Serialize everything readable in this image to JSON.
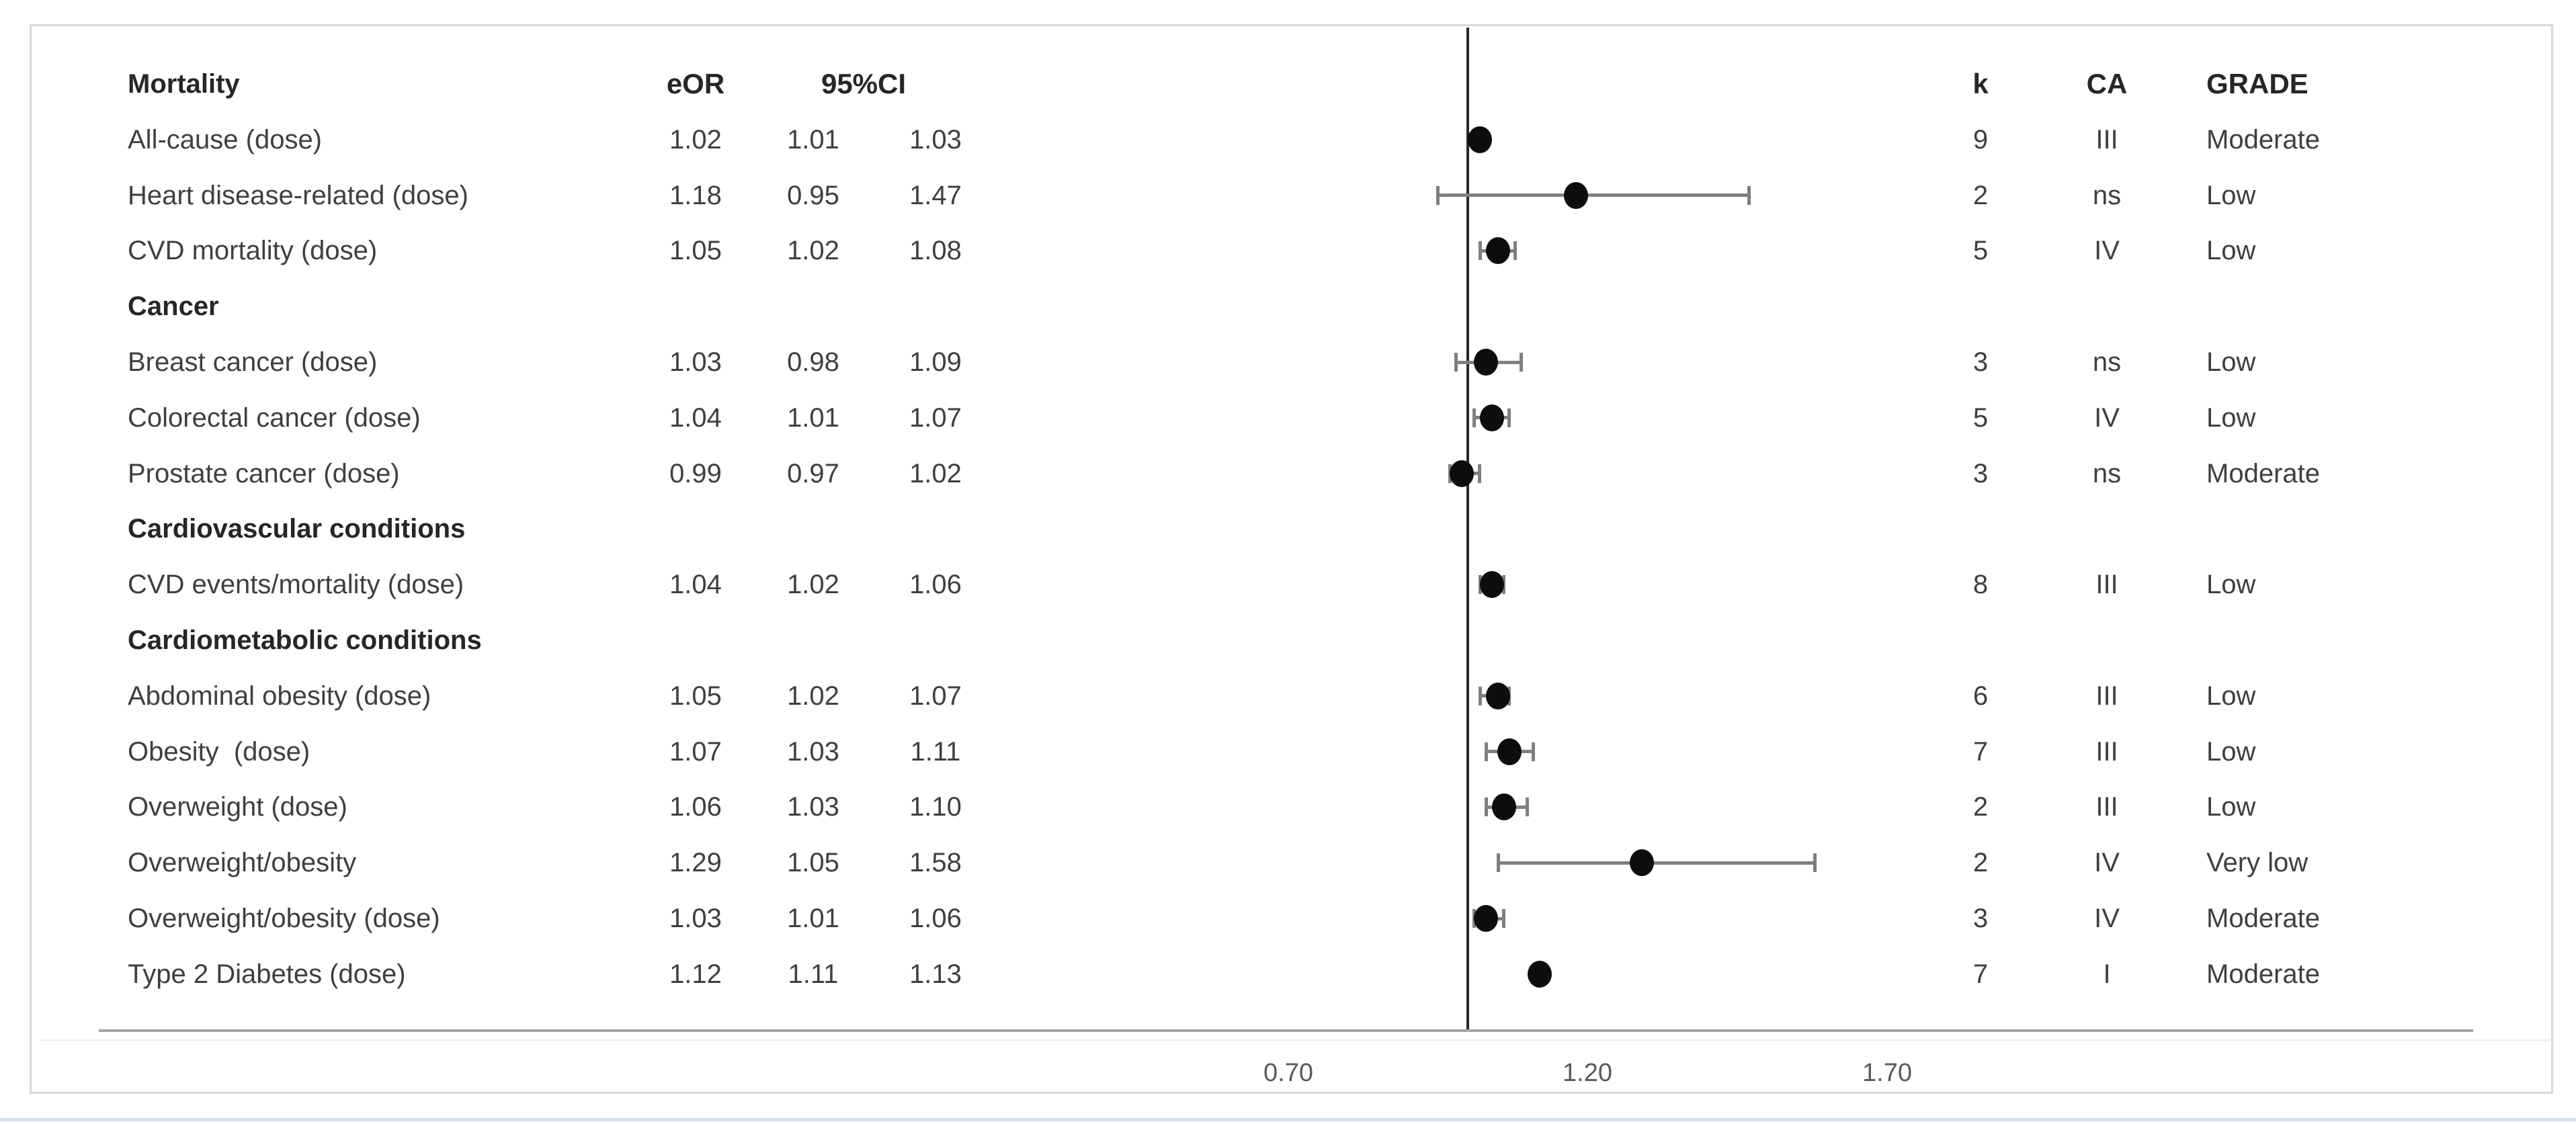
{
  "columns": {
    "eor": "eOR",
    "ci": "95%CI",
    "k": "k",
    "ca": "CA",
    "grade": "GRADE"
  },
  "axis": {
    "tick_labels": [
      "0.70",
      "1.20",
      "1.70"
    ],
    "tick_values": [
      0.7,
      1.2,
      1.7
    ],
    "reference_value": 1.0
  },
  "rows": [
    {
      "type": "section",
      "label": "Mortality"
    },
    {
      "type": "data",
      "label": "All-cause (dose)",
      "eor": "1.02",
      "lo": "1.01",
      "hi": "1.03",
      "k": "9",
      "ca": "III",
      "grade": "Moderate"
    },
    {
      "type": "data",
      "label": "Heart disease-related (dose)",
      "eor": "1.18",
      "lo": "0.95",
      "hi": "1.47",
      "k": "2",
      "ca": "ns",
      "grade": "Low"
    },
    {
      "type": "data",
      "label": "CVD mortality (dose)",
      "eor": "1.05",
      "lo": "1.02",
      "hi": "1.08",
      "k": "5",
      "ca": "IV",
      "grade": "Low"
    },
    {
      "type": "section",
      "label": "Cancer"
    },
    {
      "type": "data",
      "label": "Breast cancer (dose)",
      "eor": "1.03",
      "lo": "0.98",
      "hi": "1.09",
      "k": "3",
      "ca": "ns",
      "grade": "Low"
    },
    {
      "type": "data",
      "label": "Colorectal cancer (dose)",
      "eor": "1.04",
      "lo": "1.01",
      "hi": "1.07",
      "k": "5",
      "ca": "IV",
      "grade": "Low"
    },
    {
      "type": "data",
      "label": "Prostate cancer (dose)",
      "eor": "0.99",
      "lo": "0.97",
      "hi": "1.02",
      "k": "3",
      "ca": "ns",
      "grade": "Moderate"
    },
    {
      "type": "section",
      "label": "Cardiovascular conditions"
    },
    {
      "type": "data",
      "label": "CVD events/mortality (dose)",
      "eor": "1.04",
      "lo": "1.02",
      "hi": "1.06",
      "k": "8",
      "ca": "III",
      "grade": "Low"
    },
    {
      "type": "section",
      "label": "Cardiometabolic conditions"
    },
    {
      "type": "data",
      "label": "Abdominal obesity (dose)",
      "eor": "1.05",
      "lo": "1.02",
      "hi": "1.07",
      "k": "6",
      "ca": "III",
      "grade": "Low"
    },
    {
      "type": "data",
      "label": "Obesity  (dose)",
      "eor": "1.07",
      "lo": "1.03",
      "hi": "1.11",
      "k": "7",
      "ca": "III",
      "grade": "Low"
    },
    {
      "type": "data",
      "label": "Overweight (dose)",
      "eor": "1.06",
      "lo": "1.03",
      "hi": "1.10",
      "k": "2",
      "ca": "III",
      "grade": "Low"
    },
    {
      "type": "data",
      "label": "Overweight/obesity",
      "eor": "1.29",
      "lo": "1.05",
      "hi": "1.58",
      "k": "2",
      "ca": "IV",
      "grade": "Very low"
    },
    {
      "type": "data",
      "label": "Overweight/obesity (dose)",
      "eor": "1.03",
      "lo": "1.01",
      "hi": "1.06",
      "k": "3",
      "ca": "IV",
      "grade": "Moderate"
    },
    {
      "type": "data",
      "label": "Type 2 Diabetes (dose)",
      "eor": "1.12",
      "lo": "1.11",
      "hi": "1.13",
      "k": "7",
      "ca": "I",
      "grade": "Moderate"
    }
  ],
  "colors": {
    "marker": "#0d0d0d",
    "error_bar": "#7f7f7f",
    "reference_line": "#262626",
    "axis_line": "#a6a6a6",
    "figure_border": "#d9d9d9",
    "text": "#3f3f3f",
    "header_text": "#262626",
    "tick_text": "#595959"
  },
  "chart_data": {
    "type": "scatter",
    "subtype": "forest-plot",
    "title": "",
    "xlabel": "",
    "ylabel": "",
    "x_axis": {
      "tick_labels": [
        "0.70",
        "1.20",
        "1.70"
      ],
      "tick_values": [
        0.7,
        1.2,
        1.7
      ],
      "reference_line": 1.0,
      "grid": false
    },
    "legend": "none",
    "points": [
      {
        "label": "All-cause (dose)",
        "or": 1.02,
        "ci_low": 1.01,
        "ci_high": 1.03,
        "k": 9,
        "ca": "III",
        "grade": "Moderate"
      },
      {
        "label": "Heart disease-related (dose)",
        "or": 1.18,
        "ci_low": 0.95,
        "ci_high": 1.47,
        "k": 2,
        "ca": "ns",
        "grade": "Low"
      },
      {
        "label": "CVD mortality (dose)",
        "or": 1.05,
        "ci_low": 1.02,
        "ci_high": 1.08,
        "k": 5,
        "ca": "IV",
        "grade": "Low"
      },
      {
        "label": "Breast cancer (dose)",
        "or": 1.03,
        "ci_low": 0.98,
        "ci_high": 1.09,
        "k": 3,
        "ca": "ns",
        "grade": "Low"
      },
      {
        "label": "Colorectal cancer (dose)",
        "or": 1.04,
        "ci_low": 1.01,
        "ci_high": 1.07,
        "k": 5,
        "ca": "IV",
        "grade": "Low"
      },
      {
        "label": "Prostate cancer (dose)",
        "or": 0.99,
        "ci_low": 0.97,
        "ci_high": 1.02,
        "k": 3,
        "ca": "ns",
        "grade": "Moderate"
      },
      {
        "label": "CVD events/mortality (dose)",
        "or": 1.04,
        "ci_low": 1.02,
        "ci_high": 1.06,
        "k": 8,
        "ca": "III",
        "grade": "Low"
      },
      {
        "label": "Abdominal obesity (dose)",
        "or": 1.05,
        "ci_low": 1.02,
        "ci_high": 1.07,
        "k": 6,
        "ca": "III",
        "grade": "Low"
      },
      {
        "label": "Obesity (dose)",
        "or": 1.07,
        "ci_low": 1.03,
        "ci_high": 1.11,
        "k": 7,
        "ca": "III",
        "grade": "Low"
      },
      {
        "label": "Overweight (dose)",
        "or": 1.06,
        "ci_low": 1.03,
        "ci_high": 1.1,
        "k": 2,
        "ca": "III",
        "grade": "Low"
      },
      {
        "label": "Overweight/obesity",
        "or": 1.29,
        "ci_low": 1.05,
        "ci_high": 1.58,
        "k": 2,
        "ca": "IV",
        "grade": "Very low"
      },
      {
        "label": "Overweight/obesity (dose)",
        "or": 1.03,
        "ci_low": 1.01,
        "ci_high": 1.06,
        "k": 3,
        "ca": "IV",
        "grade": "Moderate"
      },
      {
        "label": "Type 2 Diabetes (dose)",
        "or": 1.12,
        "ci_low": 1.11,
        "ci_high": 1.13,
        "k": 7,
        "ca": "I",
        "grade": "Moderate"
      }
    ]
  }
}
